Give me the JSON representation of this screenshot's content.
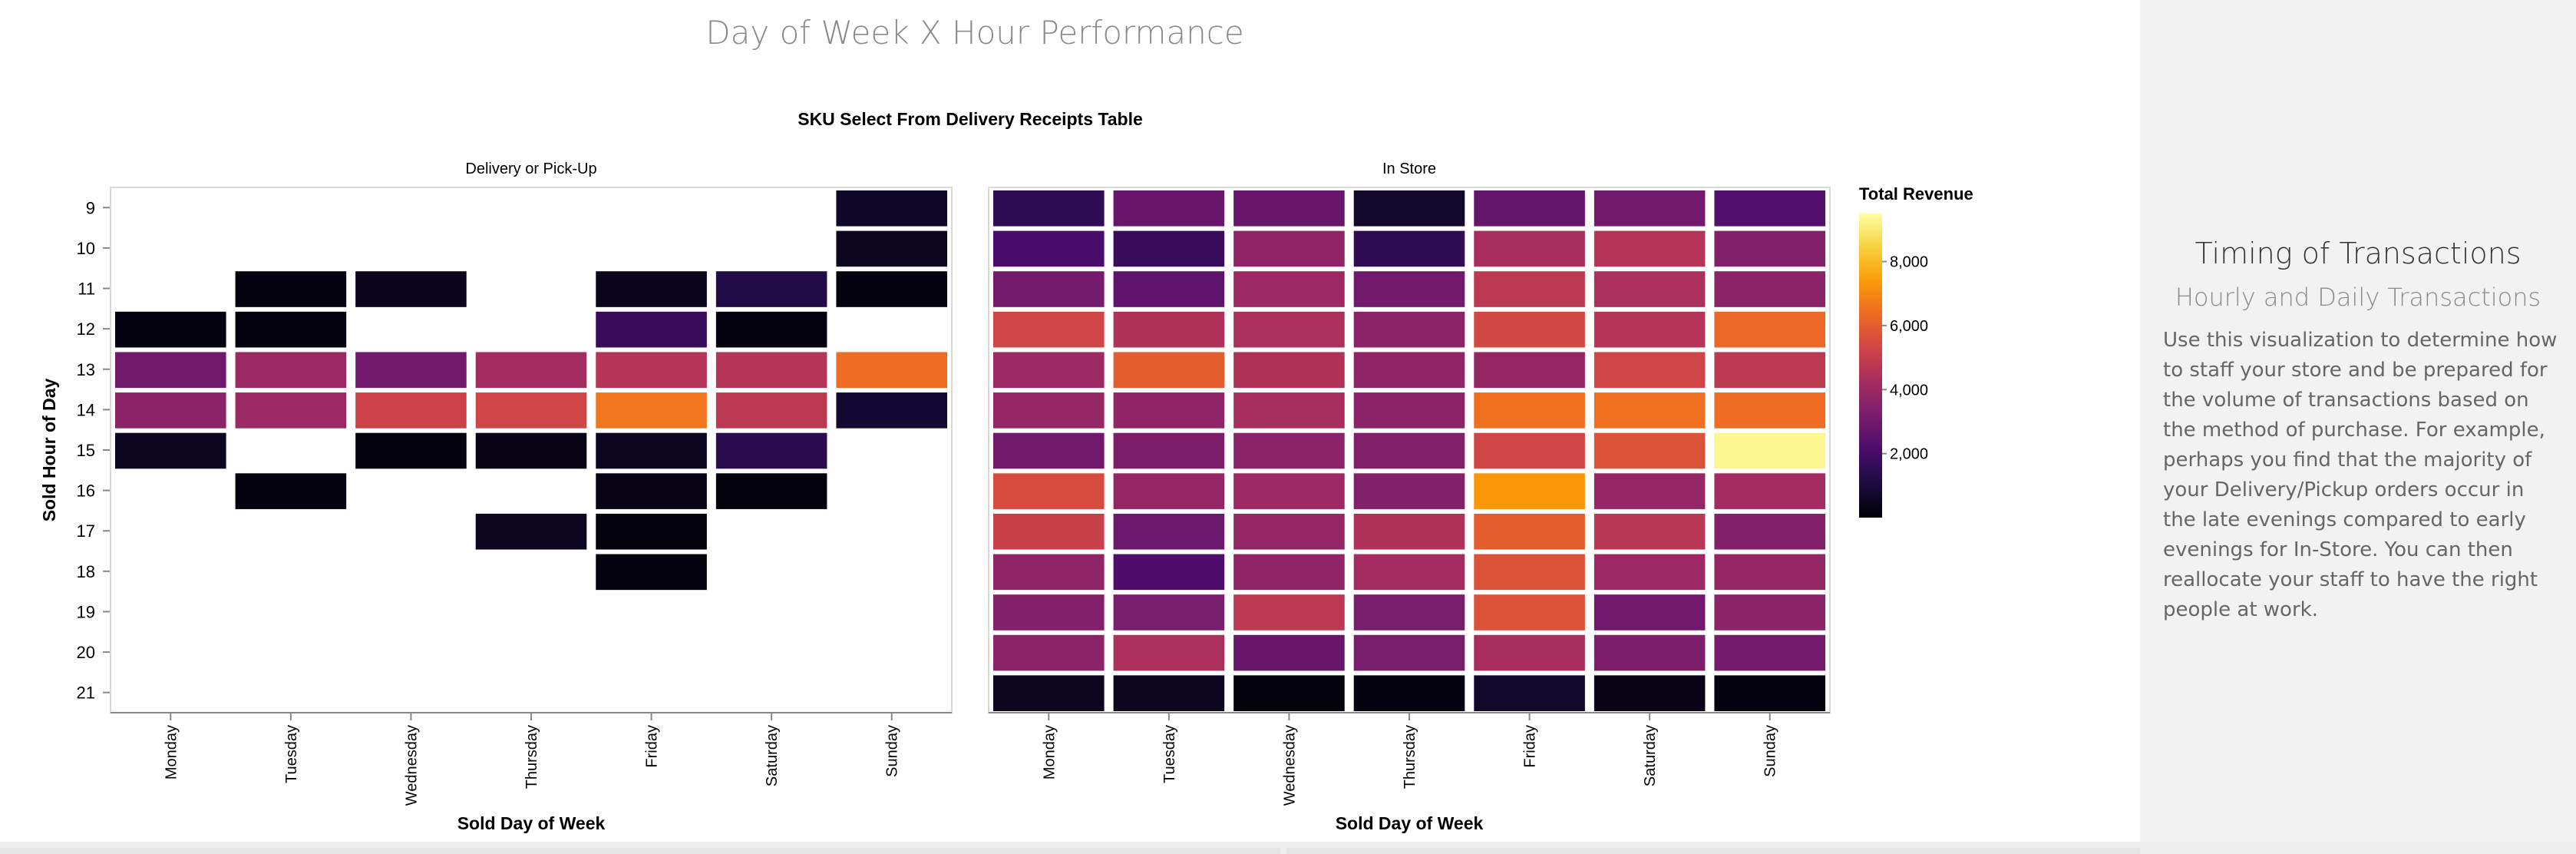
{
  "dashboard": {
    "title": "Day of Week X Hour Performance"
  },
  "sidebar": {
    "title": "Timing of Transactions",
    "subtitle": "Hourly and Daily Transactions",
    "body": "Use this visualization to determine how to staff your store and be prepared for the volume of transactions based on the method of purchase. For example, perhaps you find that the majority of your Delivery/Pickup orders occur in the late evenings compared to early evenings for In-Store. You can then reallocate your staff to have the right people at work."
  },
  "chart_data": {
    "type": "heatmap",
    "title": "SKU Select From Delivery Receipts Table",
    "xlabel": "Sold Day of Week",
    "ylabel": "Sold Hour of Day",
    "days": [
      "Monday",
      "Tuesday",
      "Wednesday",
      "Thursday",
      "Friday",
      "Saturday",
      "Sunday"
    ],
    "hours": [
      9,
      10,
      11,
      12,
      13,
      14,
      15,
      16,
      17,
      18,
      19,
      20,
      21
    ],
    "color_scheme": "inferno",
    "color_stops": [
      "#000004",
      "#1b0c41",
      "#4a0c6b",
      "#781c6d",
      "#a52c60",
      "#cf4446",
      "#ed6925",
      "#fb9b06",
      "#f7d13d",
      "#fcffa4"
    ],
    "legend": {
      "title": "Total Revenue",
      "domain": [
        0,
        9500
      ],
      "ticks": [
        2000,
        4000,
        6000,
        8000
      ],
      "tick_labels": [
        "2,000",
        "4,000",
        "6,000",
        "8,000"
      ],
      "position": "right"
    },
    "panels": [
      {
        "name": "Delivery or Pick-Up",
        "cells": [
          {
            "day": "Monday",
            "hour": 12,
            "value": 200
          },
          {
            "day": "Monday",
            "hour": 13,
            "value": 3000
          },
          {
            "day": "Monday",
            "hour": 14,
            "value": 3600
          },
          {
            "day": "Monday",
            "hour": 15,
            "value": 500
          },
          {
            "day": "Tuesday",
            "hour": 11,
            "value": 200
          },
          {
            "day": "Tuesday",
            "hour": 12,
            "value": 200
          },
          {
            "day": "Tuesday",
            "hour": 13,
            "value": 4000
          },
          {
            "day": "Tuesday",
            "hour": 14,
            "value": 4000
          },
          {
            "day": "Tuesday",
            "hour": 16,
            "value": 200
          },
          {
            "day": "Wednesday",
            "hour": 11,
            "value": 400
          },
          {
            "day": "Wednesday",
            "hour": 13,
            "value": 3000
          },
          {
            "day": "Wednesday",
            "hour": 14,
            "value": 5200
          },
          {
            "day": "Wednesday",
            "hour": 15,
            "value": 200
          },
          {
            "day": "Thursday",
            "hour": 13,
            "value": 4200
          },
          {
            "day": "Thursday",
            "hour": 14,
            "value": 5300
          },
          {
            "day": "Thursday",
            "hour": 15,
            "value": 300
          },
          {
            "day": "Thursday",
            "hour": 17,
            "value": 500
          },
          {
            "day": "Friday",
            "hour": 11,
            "value": 400
          },
          {
            "day": "Friday",
            "hour": 12,
            "value": 1700
          },
          {
            "day": "Friday",
            "hour": 13,
            "value": 4600
          },
          {
            "day": "Friday",
            "hour": 14,
            "value": 6600
          },
          {
            "day": "Friday",
            "hour": 15,
            "value": 500
          },
          {
            "day": "Friday",
            "hour": 16,
            "value": 300
          },
          {
            "day": "Friday",
            "hour": 17,
            "value": 100
          },
          {
            "day": "Friday",
            "hour": 18,
            "value": 200
          },
          {
            "day": "Saturday",
            "hour": 11,
            "value": 1200
          },
          {
            "day": "Saturday",
            "hour": 12,
            "value": 200
          },
          {
            "day": "Saturday",
            "hour": 13,
            "value": 4600
          },
          {
            "day": "Saturday",
            "hour": 14,
            "value": 4800
          },
          {
            "day": "Saturday",
            "hour": 15,
            "value": 1400
          },
          {
            "day": "Saturday",
            "hour": 16,
            "value": 100
          },
          {
            "day": "Sunday",
            "hour": 9,
            "value": 600
          },
          {
            "day": "Sunday",
            "hour": 10,
            "value": 500
          },
          {
            "day": "Sunday",
            "hour": 11,
            "value": 200
          },
          {
            "day": "Sunday",
            "hour": 13,
            "value": 6400
          },
          {
            "day": "Sunday",
            "hour": 14,
            "value": 800
          }
        ]
      },
      {
        "name": "In Store",
        "cells": [
          {
            "day": "Monday",
            "hour": 9,
            "value": 1500
          },
          {
            "day": "Monday",
            "hour": 10,
            "value": 2100
          },
          {
            "day": "Monday",
            "hour": 11,
            "value": 3100
          },
          {
            "day": "Monday",
            "hour": 12,
            "value": 5300
          },
          {
            "day": "Monday",
            "hour": 13,
            "value": 4000
          },
          {
            "day": "Monday",
            "hour": 14,
            "value": 3800
          },
          {
            "day": "Monday",
            "hour": 15,
            "value": 3000
          },
          {
            "day": "Monday",
            "hour": 16,
            "value": 5500
          },
          {
            "day": "Monday",
            "hour": 17,
            "value": 5100
          },
          {
            "day": "Monday",
            "hour": 18,
            "value": 3700
          },
          {
            "day": "Monday",
            "hour": 19,
            "value": 3400
          },
          {
            "day": "Monday",
            "hour": 20,
            "value": 3600
          },
          {
            "day": "Monday",
            "hour": 21,
            "value": 500
          },
          {
            "day": "Tuesday",
            "hour": 9,
            "value": 2800
          },
          {
            "day": "Tuesday",
            "hour": 10,
            "value": 1700
          },
          {
            "day": "Tuesday",
            "hour": 11,
            "value": 2600
          },
          {
            "day": "Tuesday",
            "hour": 12,
            "value": 4500
          },
          {
            "day": "Tuesday",
            "hour": 13,
            "value": 6000
          },
          {
            "day": "Tuesday",
            "hour": 14,
            "value": 3700
          },
          {
            "day": "Tuesday",
            "hour": 15,
            "value": 3300
          },
          {
            "day": "Tuesday",
            "hour": 16,
            "value": 3800
          },
          {
            "day": "Tuesday",
            "hour": 17,
            "value": 2900
          },
          {
            "day": "Tuesday",
            "hour": 18,
            "value": 2200
          },
          {
            "day": "Tuesday",
            "hour": 19,
            "value": 3200
          },
          {
            "day": "Tuesday",
            "hour": 20,
            "value": 4400
          },
          {
            "day": "Tuesday",
            "hour": 21,
            "value": 500
          },
          {
            "day": "Wednesday",
            "hour": 9,
            "value": 2800
          },
          {
            "day": "Wednesday",
            "hour": 10,
            "value": 3700
          },
          {
            "day": "Wednesday",
            "hour": 11,
            "value": 4000
          },
          {
            "day": "Wednesday",
            "hour": 12,
            "value": 4400
          },
          {
            "day": "Wednesday",
            "hour": 13,
            "value": 4500
          },
          {
            "day": "Wednesday",
            "hour": 14,
            "value": 4300
          },
          {
            "day": "Wednesday",
            "hour": 15,
            "value": 3600
          },
          {
            "day": "Wednesday",
            "hour": 16,
            "value": 4000
          },
          {
            "day": "Wednesday",
            "hour": 17,
            "value": 3800
          },
          {
            "day": "Wednesday",
            "hour": 18,
            "value": 3700
          },
          {
            "day": "Wednesday",
            "hour": 19,
            "value": 4800
          },
          {
            "day": "Wednesday",
            "hour": 20,
            "value": 2800
          },
          {
            "day": "Wednesday",
            "hour": 21,
            "value": 100
          },
          {
            "day": "Thursday",
            "hour": 9,
            "value": 700
          },
          {
            "day": "Thursday",
            "hour": 10,
            "value": 1500
          },
          {
            "day": "Thursday",
            "hour": 11,
            "value": 3000
          },
          {
            "day": "Thursday",
            "hour": 12,
            "value": 3600
          },
          {
            "day": "Thursday",
            "hour": 13,
            "value": 3700
          },
          {
            "day": "Thursday",
            "hour": 14,
            "value": 3600
          },
          {
            "day": "Thursday",
            "hour": 15,
            "value": 3400
          },
          {
            "day": "Thursday",
            "hour": 16,
            "value": 3400
          },
          {
            "day": "Thursday",
            "hour": 17,
            "value": 4500
          },
          {
            "day": "Thursday",
            "hour": 18,
            "value": 4200
          },
          {
            "day": "Thursday",
            "hour": 19,
            "value": 3200
          },
          {
            "day": "Thursday",
            "hour": 20,
            "value": 3200
          },
          {
            "day": "Thursday",
            "hour": 21,
            "value": 200
          },
          {
            "day": "Friday",
            "hour": 9,
            "value": 2700
          },
          {
            "day": "Friday",
            "hour": 10,
            "value": 4300
          },
          {
            "day": "Friday",
            "hour": 11,
            "value": 4800
          },
          {
            "day": "Friday",
            "hour": 12,
            "value": 5400
          },
          {
            "day": "Friday",
            "hour": 13,
            "value": 3800
          },
          {
            "day": "Friday",
            "hour": 14,
            "value": 6500
          },
          {
            "day": "Friday",
            "hour": 15,
            "value": 5300
          },
          {
            "day": "Friday",
            "hour": 16,
            "value": 7300
          },
          {
            "day": "Friday",
            "hour": 17,
            "value": 6000
          },
          {
            "day": "Friday",
            "hour": 18,
            "value": 5700
          },
          {
            "day": "Friday",
            "hour": 19,
            "value": 5700
          },
          {
            "day": "Friday",
            "hour": 20,
            "value": 4300
          },
          {
            "day": "Friday",
            "hour": 21,
            "value": 700
          },
          {
            "day": "Saturday",
            "hour": 9,
            "value": 3000
          },
          {
            "day": "Saturday",
            "hour": 10,
            "value": 4600
          },
          {
            "day": "Saturday",
            "hour": 11,
            "value": 4400
          },
          {
            "day": "Saturday",
            "hour": 12,
            "value": 4600
          },
          {
            "day": "Saturday",
            "hour": 13,
            "value": 5300
          },
          {
            "day": "Saturday",
            "hour": 14,
            "value": 6500
          },
          {
            "day": "Saturday",
            "hour": 15,
            "value": 5700
          },
          {
            "day": "Saturday",
            "hour": 16,
            "value": 3800
          },
          {
            "day": "Saturday",
            "hour": 17,
            "value": 4700
          },
          {
            "day": "Saturday",
            "hour": 18,
            "value": 4000
          },
          {
            "day": "Saturday",
            "hour": 19,
            "value": 3000
          },
          {
            "day": "Saturday",
            "hour": 20,
            "value": 3300
          },
          {
            "day": "Saturday",
            "hour": 21,
            "value": 300
          },
          {
            "day": "Sunday",
            "hour": 9,
            "value": 2300
          },
          {
            "day": "Sunday",
            "hour": 10,
            "value": 3400
          },
          {
            "day": "Sunday",
            "hour": 11,
            "value": 3600
          },
          {
            "day": "Sunday",
            "hour": 12,
            "value": 6300
          },
          {
            "day": "Sunday",
            "hour": 13,
            "value": 4800
          },
          {
            "day": "Sunday",
            "hour": 14,
            "value": 6400
          },
          {
            "day": "Sunday",
            "hour": 15,
            "value": 9300
          },
          {
            "day": "Sunday",
            "hour": 16,
            "value": 4200
          },
          {
            "day": "Sunday",
            "hour": 17,
            "value": 3400
          },
          {
            "day": "Sunday",
            "hour": 18,
            "value": 3800
          },
          {
            "day": "Sunday",
            "hour": 19,
            "value": 3600
          },
          {
            "day": "Sunday",
            "hour": 20,
            "value": 3100
          },
          {
            "day": "Sunday",
            "hour": 21,
            "value": 200
          }
        ]
      }
    ]
  }
}
